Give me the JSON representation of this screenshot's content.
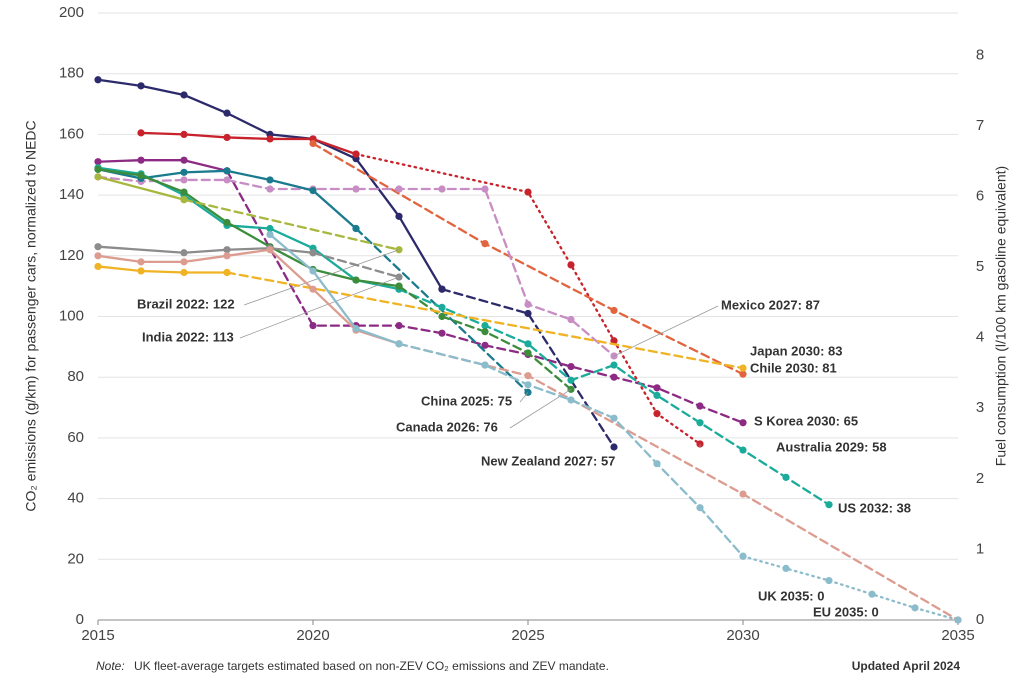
{
  "chart_data": {
    "type": "line",
    "ylabel": "CO₂ emissions (g/km) for passenger cars, normalized to NEDC",
    "y2label": "Fuel consumption (l/100 km gasoline equivalent)",
    "note_label": "Note:",
    "note": "UK fleet-average targets estimated based on non-ZEV CO₂ emissions and ZEV mandate.",
    "updated": "Updated April 2024",
    "xlim": [
      2015,
      2035
    ],
    "xticks": [
      2015,
      2020,
      2025,
      2030,
      2035
    ],
    "ylim": [
      0,
      200
    ],
    "yticks": [
      0,
      20,
      40,
      60,
      80,
      100,
      120,
      140,
      160,
      180,
      200
    ],
    "y2lim": [
      0,
      8.6
    ],
    "y2ticks": [
      0,
      1,
      2,
      3,
      4,
      5,
      6,
      7,
      8
    ],
    "grid": true,
    "series": [
      {
        "color": "#2c2a6b",
        "style": "solid",
        "x": [
          2015,
          2016,
          2017,
          2018,
          2019,
          2020,
          2021,
          2022,
          2023
        ],
        "values": [
          178,
          176,
          173,
          167,
          160,
          158.5,
          152,
          133,
          109
        ]
      },
      {
        "name": "New Zealand 2027: 57",
        "color": "#2c2a6b",
        "style": "dashed",
        "x": [
          2023,
          2025,
          2027
        ],
        "values": [
          109,
          101,
          57
        ]
      },
      {
        "color": "#c8232c",
        "style": "solid",
        "x": [
          2016,
          2017,
          2018,
          2019,
          2020,
          2021
        ],
        "values": [
          160.5,
          160,
          159,
          158.5,
          158.5,
          153.5
        ]
      },
      {
        "name": "Australia 2029: 58",
        "color": "#c8232c",
        "style": "dotted",
        "x": [
          2021,
          2025,
          2026,
          2027,
          2028,
          2029
        ],
        "values": [
          153.5,
          141,
          117,
          92,
          68,
          58
        ]
      },
      {
        "name": "Chile 2030: 81",
        "color": "#e2643e",
        "style": "dashed",
        "x": [
          2020,
          2024,
          2027,
          2030
        ],
        "values": [
          157,
          124,
          102,
          81
        ]
      },
      {
        "color": "#8c2a84",
        "style": "solid",
        "x": [
          2015,
          2016,
          2017,
          2018
        ],
        "values": [
          151,
          151.5,
          151.5,
          148
        ]
      },
      {
        "name": "S Korea 2030: 65",
        "color": "#8c2a84",
        "style": "dashed",
        "x": [
          2018,
          2020,
          2021,
          2022,
          2023,
          2024,
          2025,
          2026,
          2027,
          2028,
          2029,
          2030
        ],
        "values": [
          148,
          97,
          97,
          97,
          94.5,
          90.5,
          87.5,
          83.5,
          80,
          76.5,
          70.5,
          65
        ]
      },
      {
        "name": "Mexico 2027: 87",
        "color": "#c88dc4",
        "style": "dashed",
        "x": [
          2015,
          2016,
          2017,
          2018,
          2019,
          2020,
          2021,
          2022,
          2023,
          2024,
          2025,
          2026,
          2027
        ],
        "values": [
          146,
          144.5,
          145,
          145,
          142,
          142,
          142,
          142,
          142,
          142,
          104,
          99,
          87
        ]
      },
      {
        "color": "#1b7b8e",
        "style": "solid",
        "x": [
          2015,
          2016,
          2017,
          2018,
          2019,
          2020,
          2021
        ],
        "values": [
          148.5,
          145.5,
          147.5,
          148,
          145,
          141.5,
          129
        ]
      },
      {
        "name": "China 2025: 75",
        "color": "#1b7b8e",
        "style": "dashed",
        "x": [
          2021,
          2025
        ],
        "values": [
          129,
          75
        ]
      },
      {
        "color": "#1aab9b",
        "style": "solid",
        "x": [
          2015,
          2016,
          2017,
          2018,
          2019,
          2020,
          2021,
          2022
        ],
        "values": [
          149,
          147,
          140,
          130,
          129,
          122.5,
          112,
          109
        ]
      },
      {
        "name": "US 2032: 38",
        "color": "#1aab9b",
        "style": "dashed",
        "x": [
          2022,
          2023,
          2024,
          2025,
          2026,
          2027,
          2028,
          2029,
          2030,
          2031,
          2032
        ],
        "values": [
          109,
          103,
          97,
          91,
          79,
          84,
          74,
          65,
          56,
          47,
          38
        ]
      },
      {
        "color": "#3c8d3b",
        "style": "solid",
        "x": [
          2015,
          2016,
          2017,
          2018,
          2019,
          2020,
          2021,
          2022
        ],
        "values": [
          148.5,
          146.5,
          141,
          131,
          123,
          115.5,
          112,
          110
        ]
      },
      {
        "name": "Canada 2026: 76",
        "color": "#3c8d3b",
        "style": "dashed",
        "x": [
          2022,
          2023,
          2024,
          2025,
          2026
        ],
        "values": [
          110,
          100,
          95,
          88,
          76
        ]
      },
      {
        "color": "#a8b73d",
        "style": "solid",
        "x": [
          2015,
          2017
        ],
        "values": [
          146,
          138.5
        ]
      },
      {
        "name": "Brazil 2022: 122",
        "color": "#a8b73d",
        "style": "dashed",
        "x": [
          2017,
          2022
        ],
        "values": [
          138.5,
          122
        ]
      },
      {
        "color": "#8c8c8c",
        "style": "solid",
        "x": [
          2015,
          2017,
          2018,
          2019,
          2020
        ],
        "values": [
          123,
          121,
          122,
          122.5,
          121
        ]
      },
      {
        "name": "India 2022: 113",
        "color": "#8c8c8c",
        "style": "dashed",
        "x": [
          2020,
          2022
        ],
        "values": [
          121,
          113
        ]
      },
      {
        "color": "#f0b324",
        "style": "solid",
        "x": [
          2015,
          2016,
          2017,
          2018
        ],
        "values": [
          116.5,
          115,
          114.5,
          114.5
        ]
      },
      {
        "name": "Japan 2030: 83",
        "color": "#f0b324",
        "style": "dashed",
        "x": [
          2018,
          2030
        ],
        "values": [
          114.5,
          83
        ]
      },
      {
        "color": "#dc9c90",
        "style": "solid",
        "x": [
          2015,
          2016,
          2017,
          2018,
          2019,
          2020,
          2021,
          2022
        ],
        "values": [
          120,
          118,
          118,
          120,
          122,
          109,
          95.5,
          91
        ]
      },
      {
        "name": "EU 2035: 0",
        "color": "#dc9c90",
        "style": "dashed",
        "x": [
          2022,
          2024,
          2025,
          2030,
          2035
        ],
        "values": [
          91,
          84,
          80.5,
          41.5,
          0
        ]
      },
      {
        "color": "#8bbccb",
        "style": "solid",
        "x": [
          2019,
          2020,
          2021,
          2022
        ],
        "values": [
          127,
          115,
          96,
          91
        ]
      },
      {
        "color": "#8bbccb",
        "style": "dashed",
        "x": [
          2022,
          2024,
          2025,
          2026,
          2027,
          2028,
          2029,
          2030
        ],
        "values": [
          91,
          84,
          77.5,
          72.5,
          66.5,
          51.5,
          37,
          21
        ]
      },
      {
        "name": "UK 2035: 0",
        "color": "#8bbccb",
        "style": "dotted",
        "x": [
          2030,
          2031,
          2032,
          2033,
          2034,
          2035
        ],
        "values": [
          21,
          17,
          13,
          8.5,
          4,
          0
        ]
      }
    ]
  }
}
